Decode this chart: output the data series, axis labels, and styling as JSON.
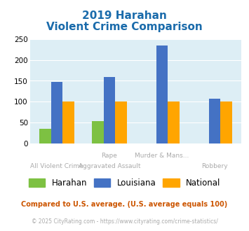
{
  "title_line1": "2019 Harahan",
  "title_line2": "Violent Crime Comparison",
  "categories_top": [
    "",
    "Rape",
    "Murder & Mans...",
    ""
  ],
  "categories_bottom": [
    "All Violent Crime",
    "Aggravated Assault",
    "",
    "Robbery"
  ],
  "harahan": [
    35,
    53,
    0,
    0
  ],
  "louisiana": [
    147,
    160,
    235,
    107
  ],
  "national": [
    100,
    100,
    100,
    100
  ],
  "harahan_color": "#7dc142",
  "louisiana_color": "#4472c4",
  "national_color": "#ffa500",
  "bg_color": "#ddeef5",
  "title_color": "#1a6bab",
  "label_color": "#aaaaaa",
  "footnote1": "Compared to U.S. average. (U.S. average equals 100)",
  "footnote2": "© 2025 CityRating.com - https://www.cityrating.com/crime-statistics/",
  "footnote1_color": "#cc5500",
  "footnote2_color": "#aaaaaa",
  "ylim": [
    0,
    250
  ],
  "yticks": [
    0,
    50,
    100,
    150,
    200,
    250
  ]
}
